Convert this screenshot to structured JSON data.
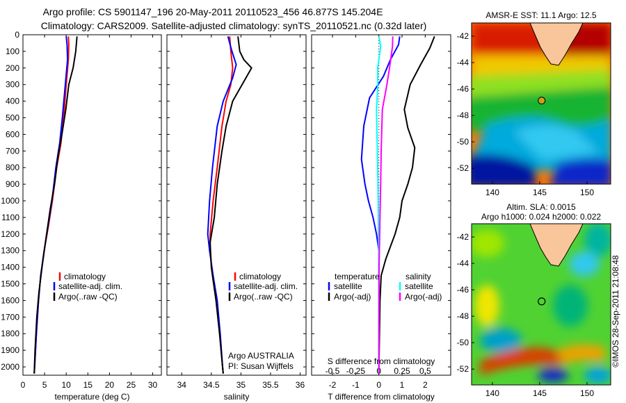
{
  "header": {
    "line1": "Argo profile: CS 5901147_196 20-May-2011 20110523_456 46.877S 145.204E",
    "line2": "Climatology: CARS2009. Satellite-adjusted climatology: synTS_20110521.nc (0.32d later)"
  },
  "maps": {
    "sst_title": "AMSR-E SST: 11.1 Argo: 12.5",
    "sla_title1": "Altim. SLA: 0.0015",
    "sla_title2": "Argo h1000: 0.024 h2000: 0.022",
    "lat_ticks": [
      "-42",
      "-44",
      "-46",
      "-48",
      "-50",
      "-52"
    ],
    "lon_ticks": [
      "140",
      "145",
      "150"
    ],
    "float_position": {
      "lon": 145.204,
      "lat": -46.877
    },
    "credit": "©IMOS 28-Sep-2011 21:08:48"
  },
  "colors": {
    "climatology": "#ff0000",
    "satellite": "#0000ff",
    "argo": "#000000",
    "sal_satellite": "#00ffff",
    "sal_argo": "#ff00ff"
  },
  "chart_data": [
    {
      "type": "line",
      "xlabel": "temperature (deg C)",
      "ylabel": "",
      "xlim": [
        0,
        32
      ],
      "ylim": [
        2050,
        0
      ],
      "xticks": [
        "0",
        "5",
        "10",
        "15",
        "20",
        "25",
        "30"
      ],
      "yticks": [
        "0",
        "100",
        "200",
        "300",
        "400",
        "500",
        "600",
        "700",
        "800",
        "900",
        "1000",
        "1100",
        "1200",
        "1300",
        "1400",
        "1500",
        "1600",
        "1700",
        "1800",
        "1900",
        "2000"
      ],
      "series": [
        {
          "name": "climatology",
          "color": "#ff0000",
          "points": [
            [
              10.5,
              10
            ],
            [
              10.6,
              60
            ],
            [
              10.5,
              150
            ],
            [
              10.0,
              300
            ],
            [
              9.4,
              500
            ],
            [
              8.8,
              650
            ],
            [
              7.8,
              800
            ],
            [
              6.8,
              1000
            ],
            [
              5.9,
              1150
            ],
            [
              4.9,
              1300
            ],
            [
              4.1,
              1450
            ],
            [
              3.6,
              1600
            ],
            [
              3.1,
              1800
            ],
            [
              2.7,
              2000
            ],
            [
              2.6,
              2040
            ]
          ]
        },
        {
          "name": "satellite-adj. clim.",
          "color": "#0000ff",
          "points": [
            [
              10.0,
              10
            ],
            [
              10.2,
              60
            ],
            [
              10.3,
              150
            ],
            [
              9.8,
              300
            ],
            [
              9.1,
              500
            ],
            [
              8.5,
              650
            ],
            [
              7.6,
              800
            ],
            [
              6.7,
              1000
            ],
            [
              5.8,
              1150
            ],
            [
              4.9,
              1300
            ],
            [
              4.1,
              1450
            ],
            [
              3.6,
              1600
            ],
            [
              3.1,
              1800
            ],
            [
              2.7,
              2000
            ],
            [
              2.6,
              2040
            ]
          ]
        },
        {
          "name": "Argo(..raw -QC)",
          "color": "#000000",
          "points": [
            [
              12.5,
              10
            ],
            [
              12.2,
              100
            ],
            [
              11.6,
              200
            ],
            [
              10.6,
              300
            ],
            [
              9.9,
              450
            ],
            [
              9.0,
              600
            ],
            [
              8.0,
              750
            ],
            [
              7.3,
              900
            ],
            [
              6.3,
              1050
            ],
            [
              5.2,
              1250
            ],
            [
              4.4,
              1400
            ],
            [
              3.7,
              1550
            ],
            [
              3.2,
              1700
            ],
            [
              2.8,
              1900
            ],
            [
              2.6,
              2040
            ]
          ]
        }
      ],
      "legend": [
        "climatology",
        "satellite-adj. clim.",
        "Argo(..raw -QC)"
      ]
    },
    {
      "type": "line",
      "xlabel": "salinity",
      "ylabel": "",
      "xlim": [
        33.75,
        36.1
      ],
      "ylim": [
        2050,
        0
      ],
      "xticks": [
        "34",
        "34.5",
        "35",
        "35.5",
        "36"
      ],
      "series": [
        {
          "name": "climatology",
          "color": "#ff0000",
          "points": [
            [
              34.81,
              10
            ],
            [
              34.83,
              100
            ],
            [
              34.86,
              200
            ],
            [
              34.83,
              300
            ],
            [
              34.75,
              400
            ],
            [
              34.68,
              550
            ],
            [
              34.6,
              800
            ],
            [
              34.53,
              1000
            ],
            [
              34.48,
              1200
            ],
            [
              34.48,
              1300
            ],
            [
              34.52,
              1450
            ],
            [
              34.58,
              1600
            ],
            [
              34.64,
              1800
            ],
            [
              34.69,
              2000
            ],
            [
              34.7,
              2040
            ]
          ]
        },
        {
          "name": "satellite-adj. clim.",
          "color": "#0000ff",
          "points": [
            [
              34.78,
              10
            ],
            [
              34.84,
              90
            ],
            [
              34.92,
              180
            ],
            [
              34.86,
              260
            ],
            [
              34.7,
              400
            ],
            [
              34.6,
              550
            ],
            [
              34.52,
              800
            ],
            [
              34.47,
              1000
            ],
            [
              34.44,
              1200
            ],
            [
              34.47,
              1300
            ],
            [
              34.53,
              1450
            ],
            [
              34.6,
              1600
            ],
            [
              34.65,
              1800
            ],
            [
              34.69,
              2000
            ],
            [
              34.7,
              2040
            ]
          ]
        },
        {
          "name": "Argo(..raw -QC)",
          "color": "#000000",
          "points": [
            [
              34.95,
              10
            ],
            [
              34.98,
              100
            ],
            [
              35.05,
              150
            ],
            [
              35.18,
              200
            ],
            [
              35.02,
              300
            ],
            [
              34.86,
              400
            ],
            [
              34.75,
              550
            ],
            [
              34.68,
              700
            ],
            [
              34.6,
              900
            ],
            [
              34.55,
              1100
            ],
            [
              34.48,
              1250
            ],
            [
              34.5,
              1400
            ],
            [
              34.58,
              1600
            ],
            [
              34.64,
              1800
            ],
            [
              34.69,
              2000
            ],
            [
              34.7,
              2040
            ]
          ]
        }
      ],
      "legend": [
        "climatology",
        "satellite-adj. clim.",
        "Argo(..raw -QC)"
      ],
      "annotation": [
        "Argo AUSTRALIA",
        "PI: Susan Wijffels"
      ]
    },
    {
      "type": "line",
      "xlabel": "T difference from climatology",
      "ylabel": "",
      "xlim": [
        -2.9,
        3.1
      ],
      "ylim": [
        2050,
        0
      ],
      "xticks": [
        "-2",
        "-1",
        "0",
        "1",
        "2"
      ],
      "top_axis_label": "S difference from climatology",
      "top_ticks": [
        "-0.5",
        "-0.25",
        "0",
        "0.25",
        "0.5"
      ],
      "series": [
        {
          "name": "temperature satellite",
          "color": "#0000ff",
          "points": [
            [
              0.9,
              10
            ],
            [
              0.85,
              60
            ],
            [
              0.5,
              150
            ],
            [
              0.2,
              250
            ],
            [
              -0.4,
              380
            ],
            [
              -0.65,
              550
            ],
            [
              -0.75,
              750
            ],
            [
              -0.6,
              900
            ],
            [
              -0.45,
              1000
            ],
            [
              -0.25,
              1100
            ],
            [
              -0.1,
              1200
            ],
            [
              0,
              1300
            ],
            [
              0,
              2040
            ]
          ]
        },
        {
          "name": "temperature Argo(-adj)",
          "color": "#000000",
          "points": [
            [
              2.4,
              10
            ],
            [
              2.2,
              80
            ],
            [
              1.8,
              180
            ],
            [
              1.35,
              300
            ],
            [
              1.1,
              450
            ],
            [
              1.25,
              560
            ],
            [
              1.55,
              680
            ],
            [
              1.45,
              800
            ],
            [
              1.25,
              900
            ],
            [
              1.0,
              1000
            ],
            [
              0.9,
              1100
            ],
            [
              0.7,
              1200
            ],
            [
              0.3,
              1350
            ],
            [
              0.1,
              1450
            ],
            [
              0.05,
              1600
            ],
            [
              0,
              2040
            ]
          ]
        },
        {
          "name": "salinity satellite",
          "color": "#00ffff",
          "points": [
            [
              0,
              10
            ],
            [
              0.08,
              70
            ],
            [
              0,
              150
            ],
            [
              -0.05,
              200
            ],
            [
              -0.04,
              300
            ],
            [
              -0.1,
              450
            ],
            [
              -0.08,
              600
            ],
            [
              -0.05,
              800
            ],
            [
              -0.03,
              1000
            ],
            [
              -0.02,
              1200
            ],
            [
              0,
              1300
            ],
            [
              0,
              2040
            ]
          ]
        },
        {
          "name": "salinity Argo(-adj)",
          "color": "#ff00ff",
          "points": [
            [
              0.6,
              10
            ],
            [
              0.59,
              70
            ],
            [
              0.48,
              180
            ],
            [
              0.35,
              300
            ],
            [
              0.15,
              450
            ],
            [
              0.1,
              700
            ],
            [
              0.08,
              900
            ],
            [
              0.05,
              1100
            ],
            [
              0.03,
              1250
            ],
            [
              0.01,
              1400
            ],
            [
              0,
              2040
            ]
          ]
        }
      ],
      "legend": {
        "col1": {
          "title": "temperature",
          "items": [
            "satellite",
            "Argo(-adj)"
          ]
        },
        "col2": {
          "title": "salinity",
          "items": [
            "satellite",
            "Argo(-adj)"
          ]
        }
      }
    }
  ]
}
